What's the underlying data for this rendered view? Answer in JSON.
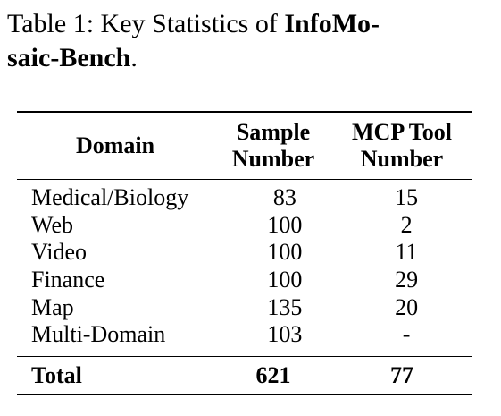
{
  "caption": {
    "prefix": "Table 1:  Key Statistics of ",
    "bold_name": "InfoMo- saic-Bench",
    "suffix": "."
  },
  "table": {
    "headers": {
      "domain": "Domain",
      "sample_line1": "Sample",
      "sample_line2": "Number",
      "mcp_line1": "MCP Tool",
      "mcp_line2": "Number"
    },
    "rows": [
      {
        "domain": "Medical/Biology",
        "sample": "83",
        "mcp": "15"
      },
      {
        "domain": "Web",
        "sample": "100",
        "mcp": "2"
      },
      {
        "domain": "Video",
        "sample": "100",
        "mcp": "11"
      },
      {
        "domain": "Finance",
        "sample": "100",
        "mcp": "29"
      },
      {
        "domain": "Map",
        "sample": "135",
        "mcp": "20"
      },
      {
        "domain": "Multi-Domain",
        "sample": "103",
        "mcp": "-"
      }
    ],
    "total": {
      "label": "Total",
      "sample": "621",
      "mcp": "77"
    }
  }
}
